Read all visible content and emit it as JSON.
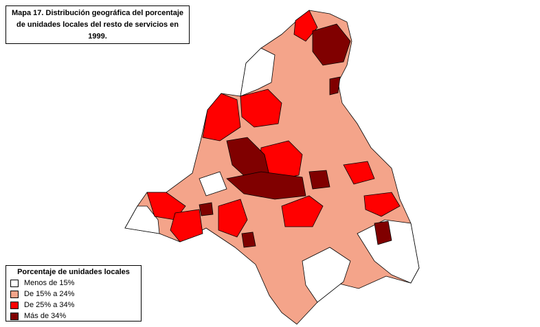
{
  "title": [
    "Mapa 17. Distribución geográfica del porcentaje",
    "de unidades locales del resto de servicios en",
    "1999."
  ],
  "legend": {
    "title": "Porcentaje de unidades locales",
    "items": [
      {
        "label": "Menos de 15%",
        "color": "#ffffff"
      },
      {
        "label": "De 15% a 24%",
        "color": "#f4a48a"
      },
      {
        "label": "De 25% a 34%",
        "color": "#ff0000"
      },
      {
        "label": "Más de 34%",
        "color": "#800000"
      }
    ]
  }
}
